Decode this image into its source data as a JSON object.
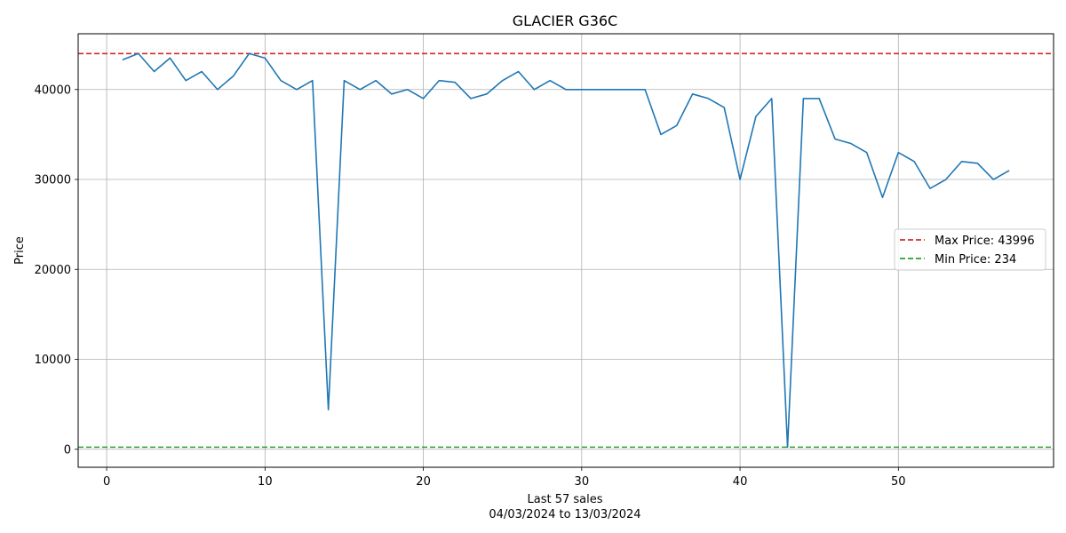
{
  "chart_data": {
    "type": "line",
    "title": "GLACIER G36C",
    "xlabel": "Last 57 sales",
    "xlabel_sub": "04/03/2024 to 13/03/2024",
    "ylabel": "Price",
    "xlim": [
      -1.8,
      59.8
    ],
    "ylim": [
      -2000,
      46200
    ],
    "x_ticks": [
      0,
      10,
      20,
      30,
      40,
      50
    ],
    "y_ticks": [
      0,
      10000,
      20000,
      30000,
      40000
    ],
    "grid": true,
    "legend_position": "center-right",
    "series": [
      {
        "color": "#1f77b4",
        "x": [
          1,
          2,
          3,
          4,
          5,
          6,
          7,
          8,
          9,
          10,
          11,
          12,
          13,
          14,
          15,
          16,
          17,
          18,
          19,
          20,
          21,
          22,
          23,
          24,
          25,
          26,
          27,
          28,
          29,
          30,
          31,
          32,
          33,
          34,
          35,
          36,
          37,
          38,
          39,
          40,
          41,
          42,
          43,
          44,
          45,
          46,
          47,
          48,
          49,
          50,
          51,
          52,
          53,
          54,
          55,
          56,
          57
        ],
        "values": [
          43300,
          44000,
          42000,
          43500,
          41000,
          42000,
          40000,
          41500,
          44000,
          43500,
          41000,
          40000,
          41000,
          4400,
          41000,
          40000,
          41000,
          39500,
          40000,
          39000,
          41000,
          40800,
          39000,
          39500,
          41000,
          42000,
          40000,
          41000,
          40000,
          40000,
          40000,
          40000,
          40000,
          40000,
          35000,
          36000,
          39500,
          39000,
          38000,
          30000,
          37000,
          39000,
          234,
          39000,
          39000,
          34500,
          34000,
          33000,
          28000,
          33000,
          32000,
          29000,
          30000,
          32000,
          31800,
          30000,
          31000
        ]
      }
    ],
    "reference_lines": [
      {
        "label": "Max Price: 43996",
        "value": 43996,
        "color": "#d62728",
        "style": "dashed"
      },
      {
        "label": "Min Price: 234",
        "value": 234,
        "color": "#2ca02c",
        "style": "dashed"
      }
    ]
  }
}
